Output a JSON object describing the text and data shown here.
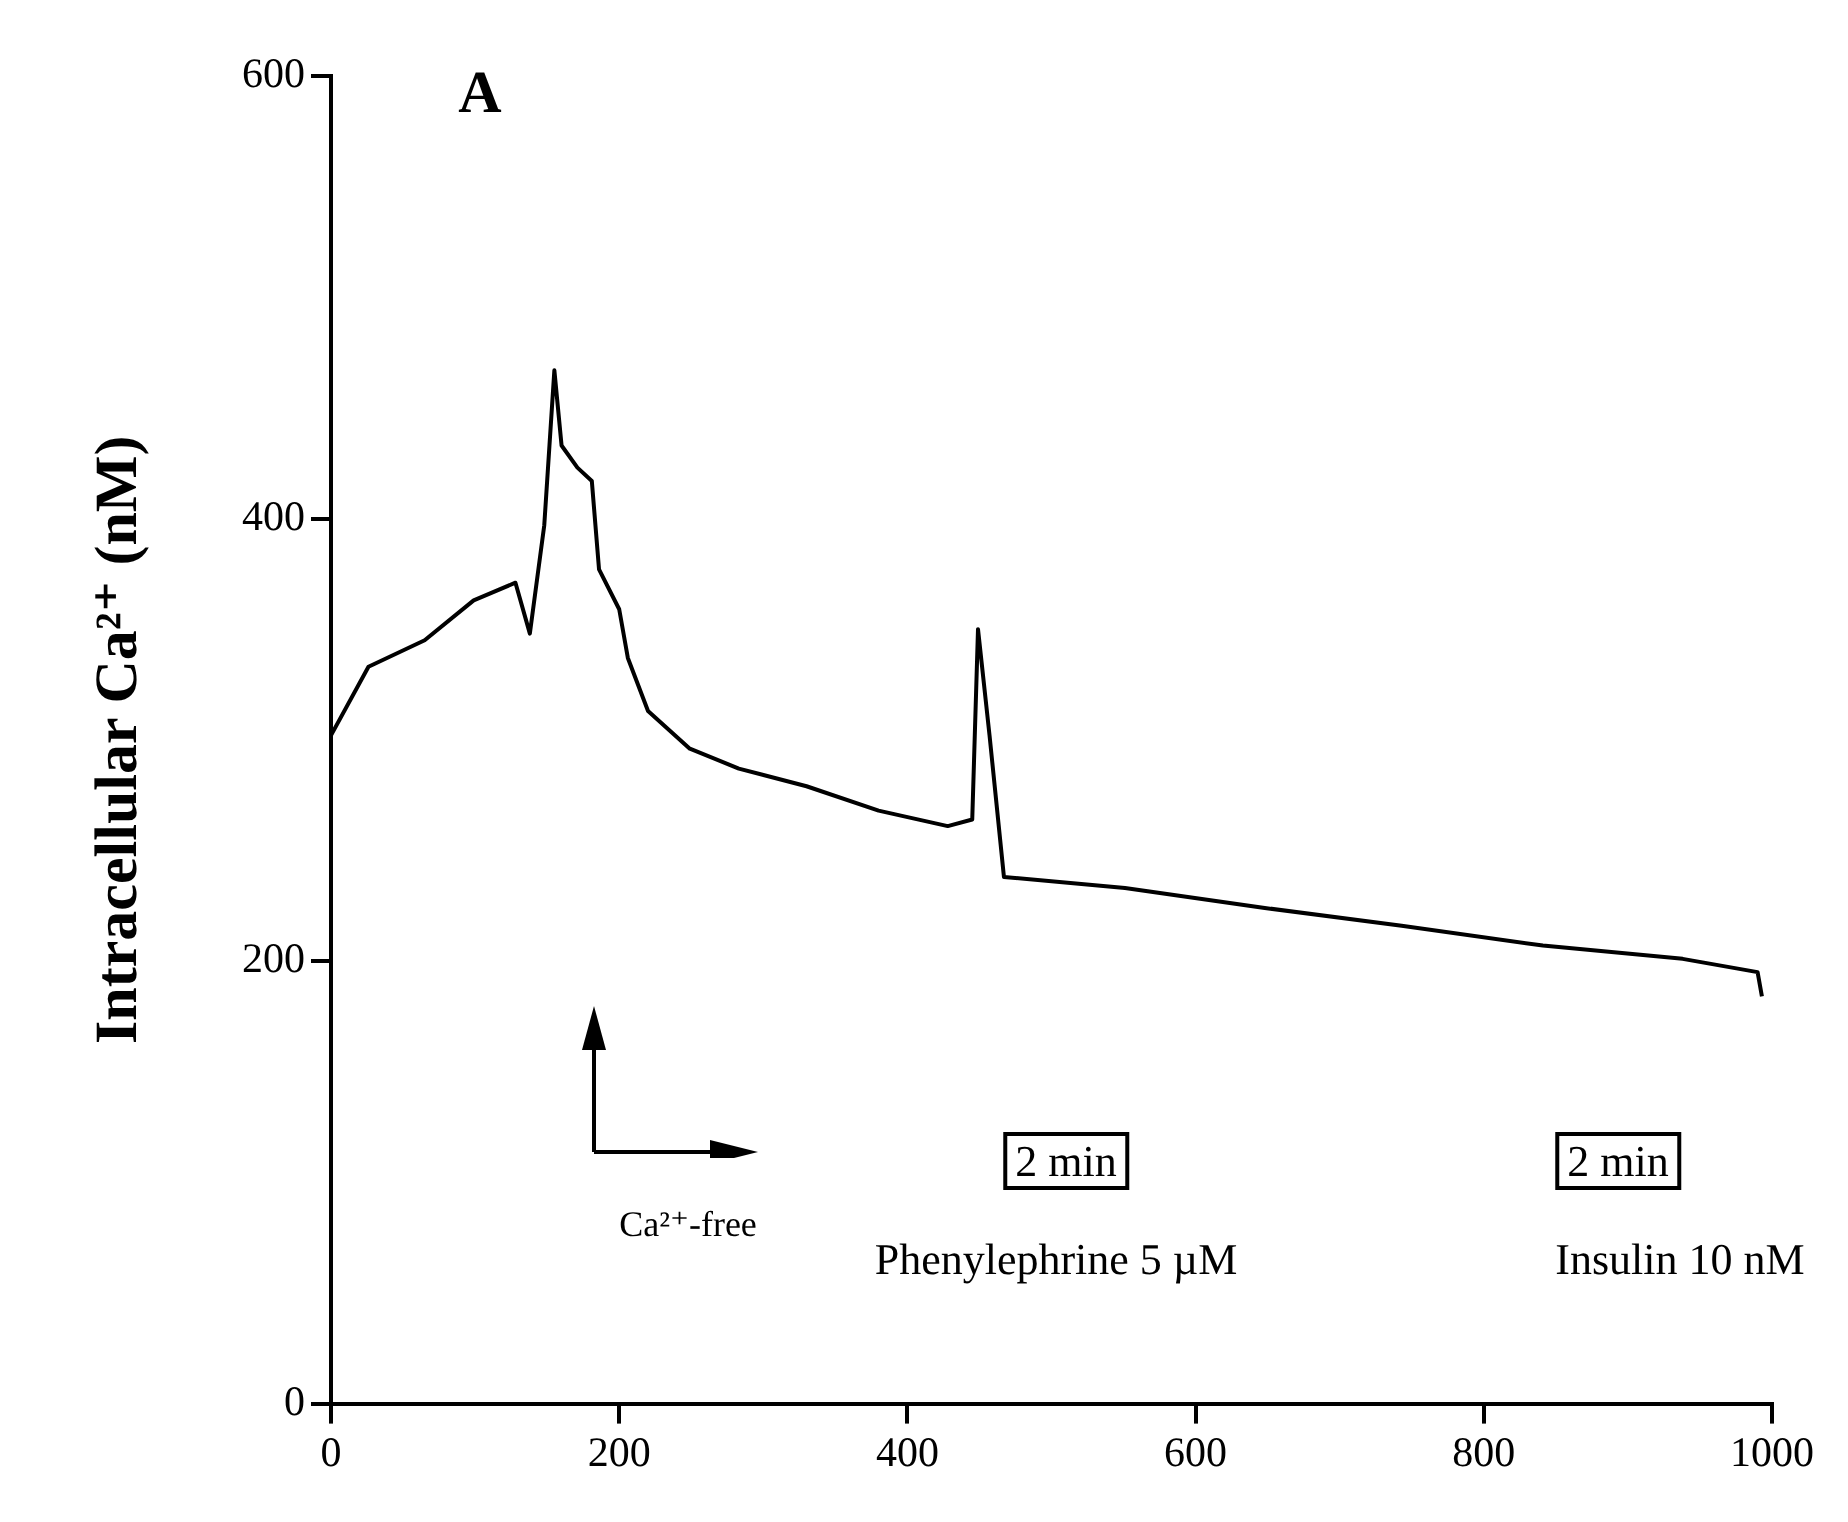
{
  "chart_data": {
    "type": "line",
    "ylabel": "Intracellular Ca²⁺ (nM)",
    "annotations": [
      "A",
      "2 min",
      "Ca²⁺-free",
      "2 min",
      "Phenylephrine 5 µM",
      "Insulin 10 nM"
    ],
    "x": [
      0,
      26,
      65,
      99,
      128,
      138,
      148,
      155,
      160,
      171,
      181,
      186,
      200,
      206,
      220,
      249,
      283,
      330,
      380,
      428,
      445,
      449,
      457,
      467,
      551,
      648,
      743,
      841,
      938,
      990,
      993
    ],
    "series": [
      {
        "color": "#000000",
        "values": [
          302,
          333,
          345,
          363,
          371,
          348,
          397,
          467,
          433,
          423,
          417,
          377,
          359,
          337,
          313,
          296,
          287,
          279,
          268,
          261,
          264,
          350,
          302,
          238,
          233,
          224,
          216,
          207,
          201,
          195,
          184
        ]
      }
    ],
    "xlim": [
      0,
      1000
    ],
    "xticks": [
      0,
      200,
      400,
      600,
      800,
      1000
    ],
    "ylim": [
      0,
      600
    ],
    "yticks": [
      0,
      200,
      400,
      600
    ],
    "grid": false,
    "legend": false,
    "marker": "none",
    "line_style": "solid"
  }
}
